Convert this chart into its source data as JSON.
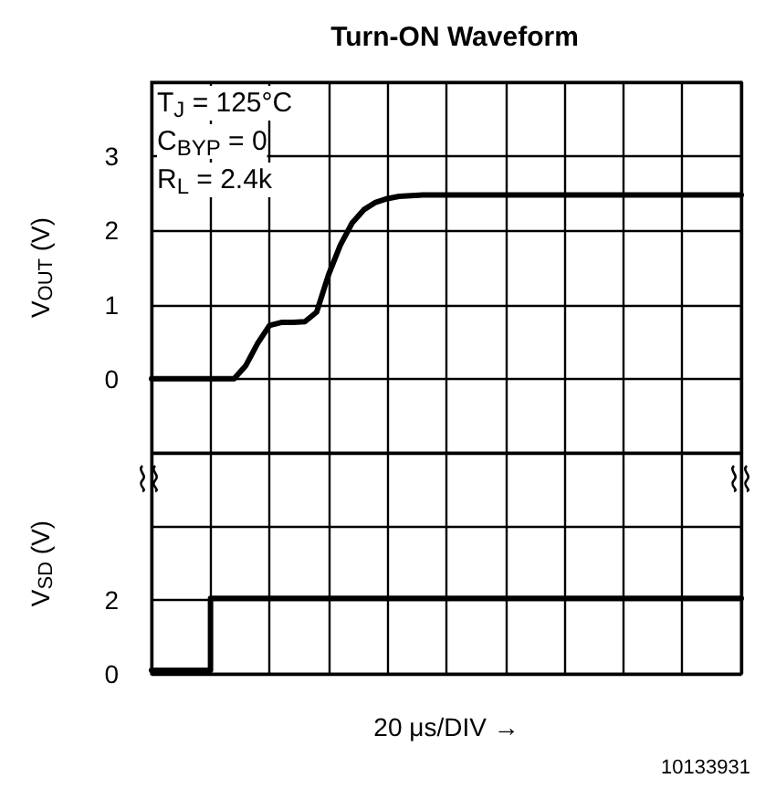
{
  "chart_data": [
    {
      "type": "line",
      "title": "Turn-ON Waveform",
      "ylabel": "V$_{OUT}$ (V)",
      "annotations": [
        "T$_{J}$ = 125°C",
        "C$_{BYP}$ = 0",
        "R$_{L}$ = 2.4k"
      ],
      "categories": [
        null,
        null,
        null,
        null,
        null,
        null,
        null,
        null,
        null,
        null,
        null,
        null,
        null,
        null,
        null,
        null,
        null,
        null,
        null,
        null,
        null,
        null,
        null,
        null,
        null,
        null,
        null,
        null,
        null,
        null,
        null,
        null,
        null,
        null,
        null,
        null,
        null,
        null,
        null,
        null,
        null,
        null,
        null,
        null,
        null,
        null,
        null,
        null,
        null,
        null,
        null
      ],
      "series": [
        {
          "color": "#000000",
          "values": [
            0,
            0,
            0,
            0,
            0,
            0,
            0,
            0,
            0.18,
            0.48,
            0.72,
            0.76,
            0.76,
            0.77,
            0.9,
            1.4,
            1.8,
            2.1,
            2.28,
            2.38,
            2.43,
            2.46,
            2.47,
            2.48,
            2.48,
            2.48,
            2.48,
            2.48,
            2.48,
            2.48,
            2.48,
            2.48,
            2.48,
            2.48,
            2.48,
            2.48,
            2.48,
            2.48,
            2.48,
            2.48,
            2.48,
            2.48,
            2.48,
            2.48,
            2.48,
            2.48,
            2.48,
            2.48,
            2.48,
            2.48,
            2.48
          ]
        }
      ],
      "ylim": [
        -1,
        4
      ],
      "yticks": [
        {
          "value": -1,
          "label": null
        },
        0,
        1,
        2,
        3,
        {
          "value": 4,
          "label": null
        }
      ],
      "tick_labels": "y",
      "grid": true,
      "marker": "none",
      "line_style": "solid"
    },
    {
      "type": "step",
      "ylabel": "V$_{SD}$ (V)",
      "xlabel": "20 μs/DIV →",
      "annotations": [
        "10133931"
      ],
      "categories": [
        null,
        null,
        null,
        null,
        null,
        null,
        null,
        null,
        null,
        null,
        null
      ],
      "series": [
        {
          "color": "#000000",
          "values": [
            0.1,
            2.05,
            2.05,
            2.05,
            2.05,
            2.05,
            2.05,
            2.05,
            2.05,
            2.05,
            2.05
          ]
        }
      ],
      "ylim": [
        0,
        6
      ],
      "yticks": [
        0,
        2,
        {
          "value": 4,
          "label": null
        },
        {
          "value": 6,
          "label": null
        }
      ],
      "tick_labels": "y",
      "grid": true,
      "marker": "none",
      "line_style": "solid"
    }
  ]
}
